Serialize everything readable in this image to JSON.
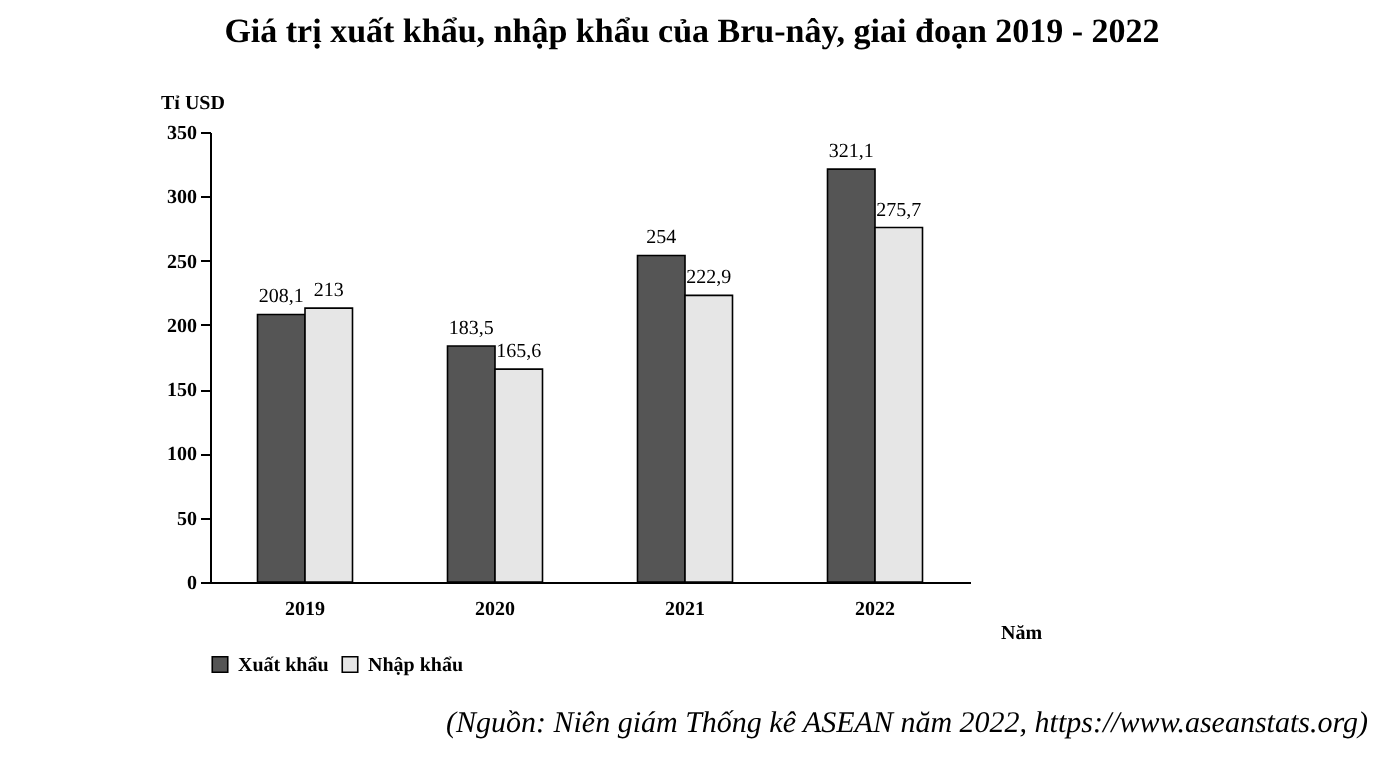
{
  "chart_data": {
    "type": "bar",
    "title": "Giá trị xuất khẩu, nhập khẩu của Bru-nây, giai đoạn 2019 - 2022",
    "xlabel": "Năm",
    "ylabel": "Tỉ USD",
    "categories": [
      "2019",
      "2020",
      "2021",
      "2022"
    ],
    "series": [
      {
        "name": "Xuất khẩu",
        "color": "#555555",
        "values": [
          208.1,
          183.5,
          254,
          321.1
        ],
        "value_labels": [
          "208,1",
          "183,5",
          "254",
          "321,1"
        ]
      },
      {
        "name": "Nhập khẩu",
        "color": "#e6e6e6",
        "values": [
          213,
          165.6,
          222.9,
          275.7
        ],
        "value_labels": [
          "213",
          "165,6",
          "222,9",
          "275,7"
        ]
      }
    ],
    "ylim": [
      0,
      350
    ],
    "yticks": [
      0,
      50,
      100,
      150,
      200,
      250,
      300,
      350
    ],
    "legend": "bottom",
    "annotations": [
      "(Nguồn: Niên giám Thống kê ASEAN năm 2022, https://www.aseanstats.org)"
    ]
  }
}
